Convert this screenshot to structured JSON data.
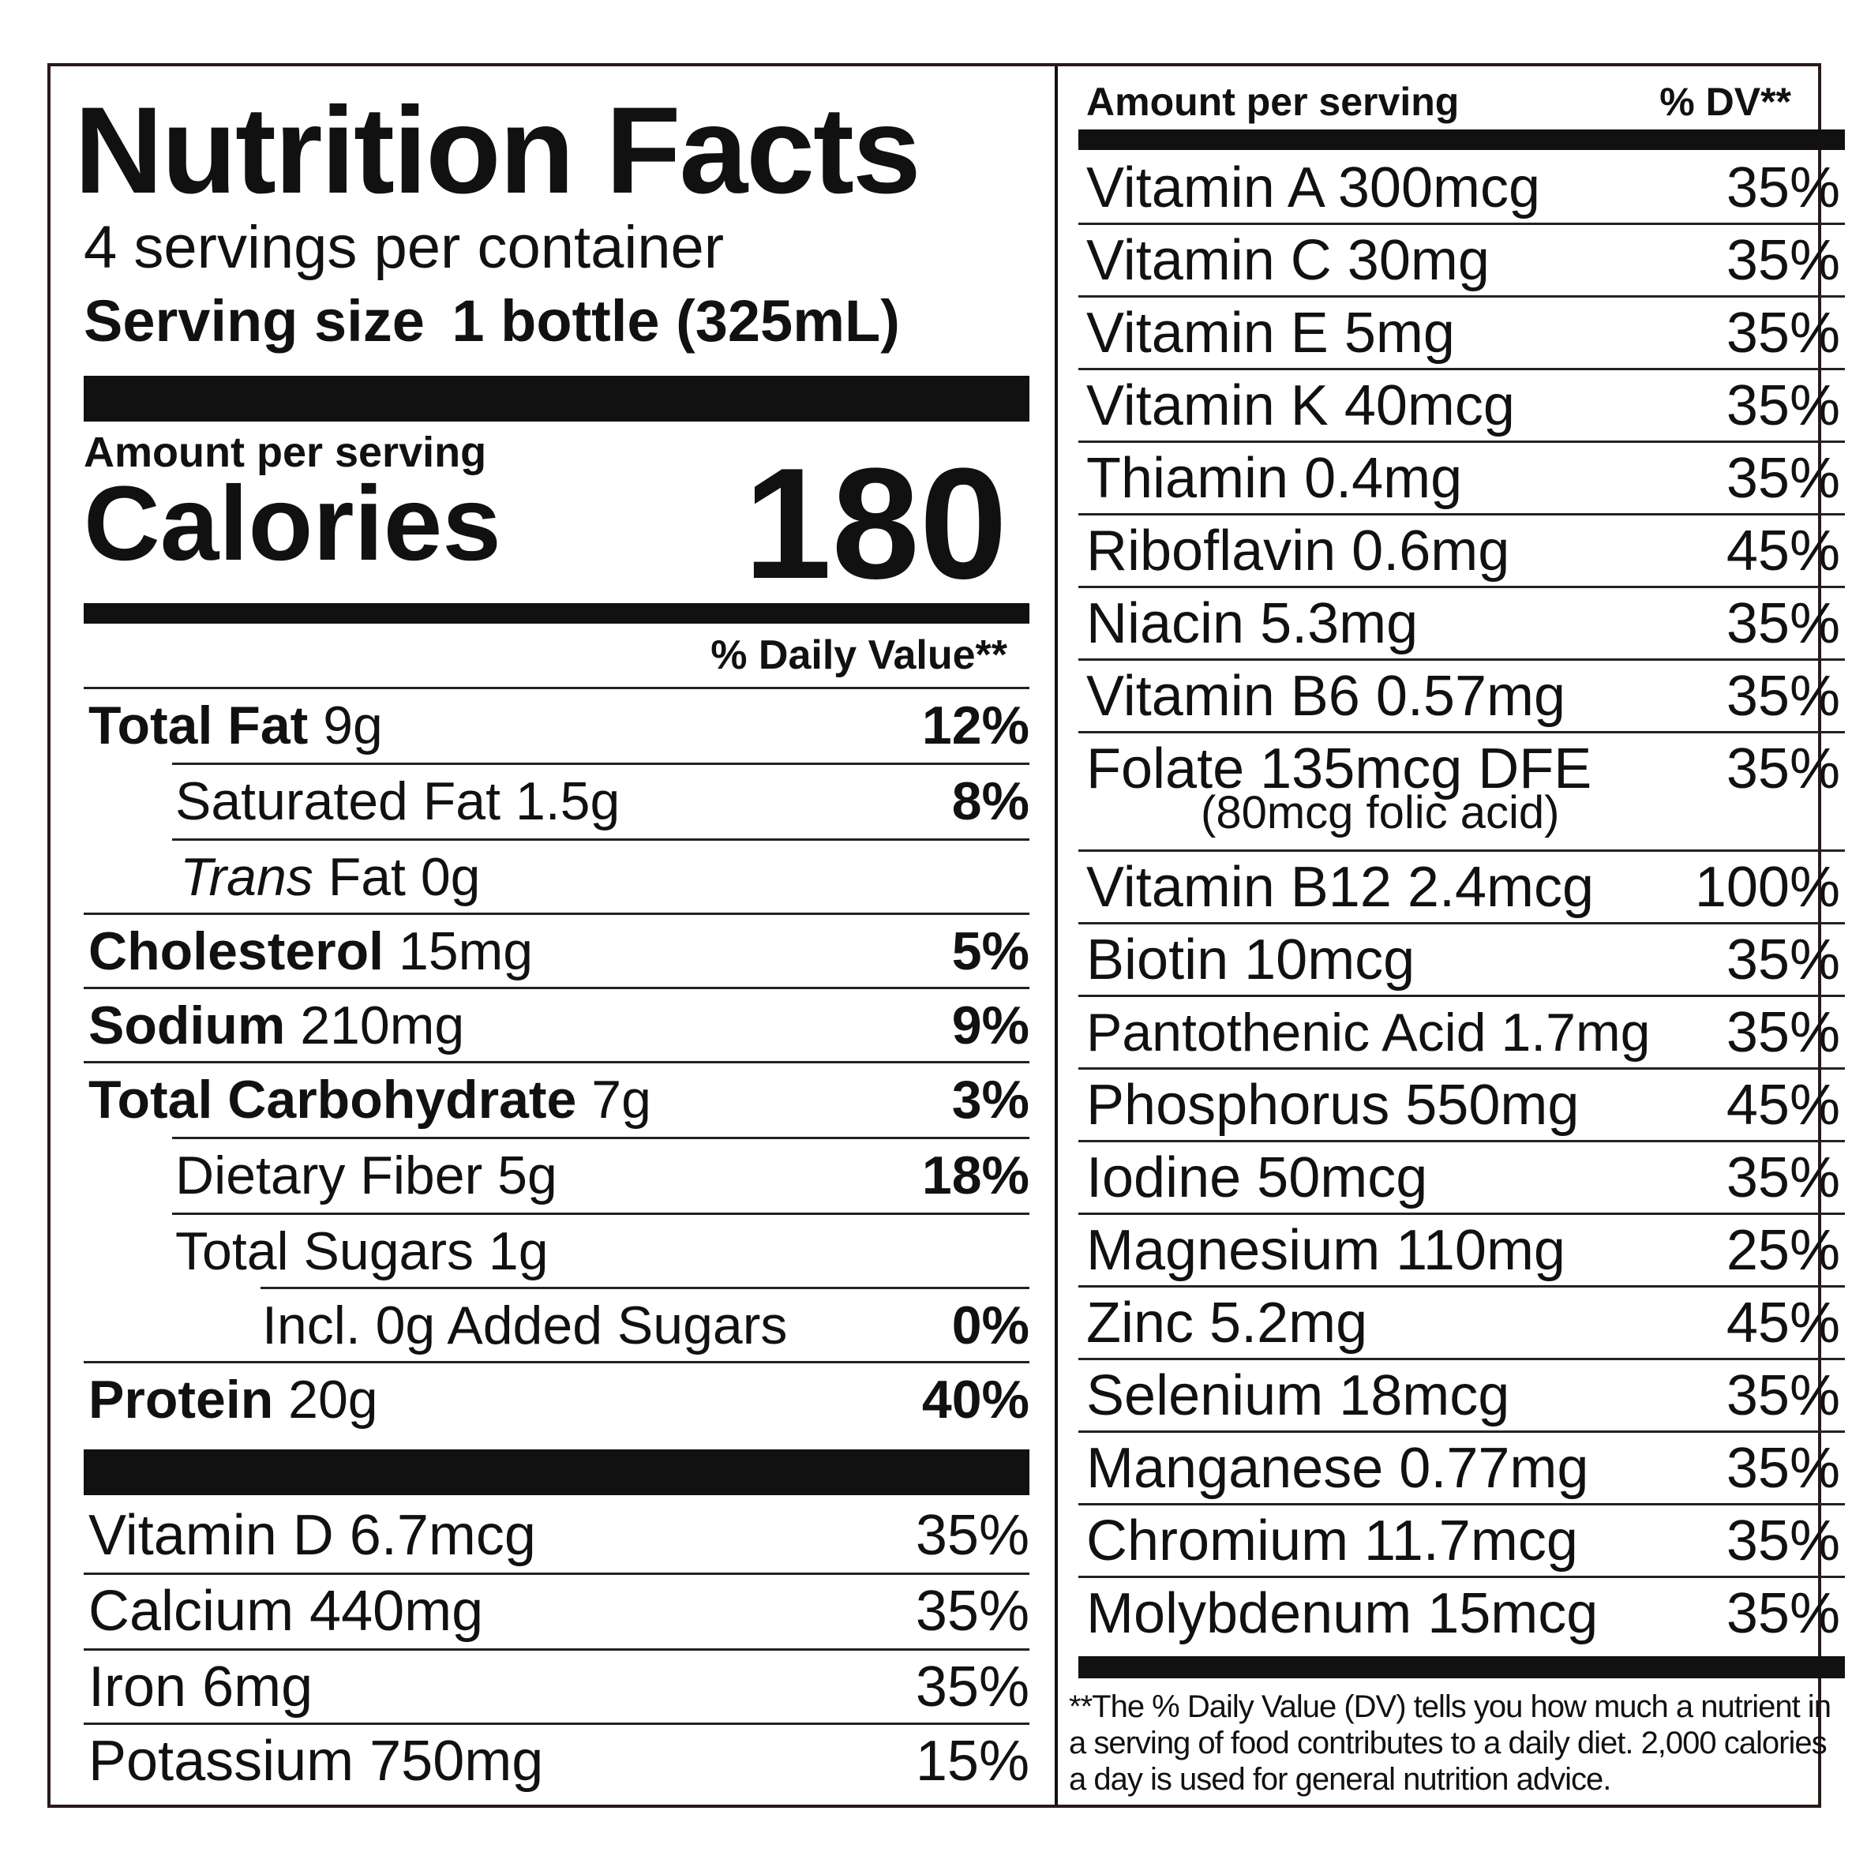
{
  "title": "Nutrition Facts",
  "servings_per_container": "4 servings per container",
  "serving_size": {
    "label": "Serving size",
    "value": "1 bottle (325mL)"
  },
  "amount_per_serving": "Amount per serving",
  "calories": {
    "label": "Calories",
    "value": "180"
  },
  "daily_value_header": "% Daily Value**",
  "nutrients": [
    {
      "name": "Total Fat",
      "amount": "9g",
      "dv": "12%"
    },
    {
      "name": "Saturated Fat",
      "amount": "1.5g",
      "dv": "8%"
    },
    {
      "name_italic": "Trans",
      "name": "Fat",
      "amount": "0g",
      "dv": ""
    },
    {
      "name": "Cholesterol",
      "amount": "15mg",
      "dv": "5%"
    },
    {
      "name": "Sodium",
      "amount": "210mg",
      "dv": "9%"
    },
    {
      "name": "Total Carbohydrate",
      "amount": "7g",
      "dv": "3%"
    },
    {
      "name": "Dietary Fiber",
      "amount": "5g",
      "dv": "18%"
    },
    {
      "name": "Total Sugars",
      "amount": "1g",
      "dv": ""
    },
    {
      "name": "Incl. 0g Added Sugars",
      "amount": "",
      "dv": "0%"
    },
    {
      "name": "Protein",
      "amount": "20g",
      "dv": "40%"
    }
  ],
  "minerals_left": [
    {
      "label": "Vitamin D 6.7mcg",
      "dv": "35%"
    },
    {
      "label": "Calcium 440mg",
      "dv": "35%"
    },
    {
      "label": "Iron 6mg",
      "dv": "35%"
    },
    {
      "label": "Potassium 750mg",
      "dv": "15%"
    }
  ],
  "right_header": {
    "amount": "Amount per serving",
    "dv": "% DV**"
  },
  "vitamins_right": [
    {
      "label": "Vitamin A 300mcg",
      "dv": "35%"
    },
    {
      "label": "Vitamin C 30mg",
      "dv": "35%"
    },
    {
      "label": "Vitamin E 5mg",
      "dv": "35%"
    },
    {
      "label": "Vitamin K 40mcg",
      "dv": "35%"
    },
    {
      "label": "Thiamin 0.4mg",
      "dv": "35%"
    },
    {
      "label": "Riboflavin 0.6mg",
      "dv": "45%"
    },
    {
      "label": "Niacin 5.3mg",
      "dv": "35%"
    },
    {
      "label": "Vitamin B6 0.57mg",
      "dv": "35%"
    },
    {
      "label": "Folate 135mcg DFE",
      "sub": "(80mcg folic acid)",
      "dv": "35%"
    },
    {
      "label": "Vitamin B12 2.4mcg",
      "dv": "100%"
    },
    {
      "label": "Biotin 10mcg",
      "dv": "35%"
    },
    {
      "label": "Pantothenic Acid 1.7mg",
      "dv": "35%"
    },
    {
      "label": "Phosphorus 550mg",
      "dv": "45%"
    },
    {
      "label": "Iodine 50mcg",
      "dv": "35%"
    },
    {
      "label": "Magnesium 110mg",
      "dv": "25%"
    },
    {
      "label": "Zinc 5.2mg",
      "dv": "45%"
    },
    {
      "label": "Selenium 18mcg",
      "dv": "35%"
    },
    {
      "label": "Manganese 0.77mg",
      "dv": "35%"
    },
    {
      "label": "Chromium 11.7mcg",
      "dv": "35%"
    },
    {
      "label": "Molybdenum 15mcg",
      "dv": "35%"
    }
  ],
  "footnote": "**The % Daily Value (DV) tells you how much a nutrient in a serving of food contributes to a daily diet. 2,000 calories a day is used for general nutrition advice."
}
